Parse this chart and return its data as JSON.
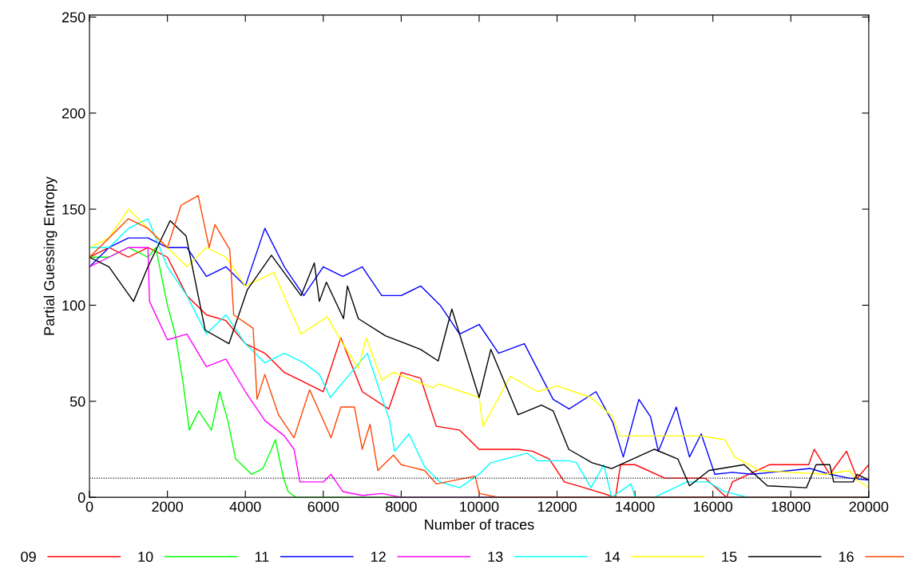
{
  "chart_data": {
    "type": "line",
    "xlabel": "Number of traces",
    "ylabel": "Partial Guessing Entropy",
    "xlim": [
      0,
      20000
    ],
    "ylim": [
      0,
      251
    ],
    "xticks": [
      0,
      2000,
      4000,
      6000,
      8000,
      10000,
      12000,
      14000,
      16000,
      18000,
      20000
    ],
    "yticks": [
      0,
      50,
      100,
      150,
      200,
      250
    ],
    "grid": false,
    "legend": "bottom",
    "marker": "none",
    "line_style": "solid",
    "ref_lines": [
      {
        "axis": "y",
        "value": 10,
        "color": "#000000",
        "line_style": "dotted"
      }
    ],
    "series": [
      {
        "name": "09",
        "color": "#ff0000",
        "x": [
          0,
          500,
          1000,
          1500,
          2000,
          2500,
          3000,
          3500,
          4000,
          4500,
          5000,
          5500,
          6000,
          6450,
          7000,
          7680,
          8000,
          8500,
          8900,
          9500,
          10000,
          10500,
          11000,
          11370,
          11800,
          12190,
          12700,
          13500,
          13630,
          14000,
          14770,
          15000,
          15800,
          16350,
          16500,
          17460,
          18000,
          18460,
          18600,
          19000,
          19430,
          19700,
          20000
        ],
        "values": [
          125,
          130,
          125,
          130,
          125,
          105,
          95,
          92,
          80,
          75,
          65,
          60,
          55,
          83,
          55,
          46,
          65,
          62,
          37,
          35,
          25,
          25,
          25,
          24,
          20,
          8,
          5,
          0,
          17,
          17,
          10,
          10,
          10,
          0,
          8,
          17,
          17,
          17,
          25,
          12,
          24,
          10,
          17
        ]
      },
      {
        "name": "10",
        "color": "#00ff00",
        "x": [
          0,
          500,
          1000,
          1500,
          1700,
          2000,
          2200,
          2400,
          2560,
          2800,
          3130,
          3340,
          3550,
          3750,
          4160,
          4450,
          4670,
          4770,
          4980,
          5100,
          5290,
          20000
        ],
        "values": [
          125,
          125,
          130,
          125,
          130,
          100,
          85,
          60,
          35,
          45,
          35,
          55,
          40,
          20,
          12,
          15,
          25,
          30,
          10,
          3,
          0,
          0
        ]
      },
      {
        "name": "11",
        "color": "#0000ff",
        "x": [
          0,
          500,
          1000,
          1500,
          2000,
          2500,
          3000,
          3500,
          4000,
          4500,
          5000,
          5500,
          6000,
          6500,
          7000,
          7500,
          8000,
          8500,
          9000,
          9500,
          10000,
          10500,
          11160,
          11900,
          12310,
          13000,
          13430,
          13700,
          14100,
          14400,
          14600,
          15060,
          15400,
          15700,
          16050,
          16500,
          17000,
          17500,
          18000,
          18500,
          19000,
          19500,
          20000
        ],
        "values": [
          120,
          130,
          135,
          135,
          130,
          130,
          115,
          120,
          110,
          140,
          120,
          105,
          120,
          115,
          120,
          105,
          105,
          110,
          100,
          85,
          90,
          75,
          80,
          51,
          46,
          55,
          39,
          21,
          51,
          42,
          24,
          47,
          21,
          33,
          12,
          13,
          12,
          13,
          14,
          15,
          12,
          10,
          9
        ]
      },
      {
        "name": "12",
        "color": "#ff00ff",
        "x": [
          0,
          500,
          1000,
          1500,
          1540,
          2000,
          2500,
          3000,
          3500,
          4000,
          4500,
          5000,
          5250,
          5400,
          6000,
          6200,
          6500,
          7000,
          7500,
          8000,
          20000
        ],
        "values": [
          120,
          125,
          130,
          130,
          102,
          82,
          85,
          68,
          72,
          55,
          40,
          32,
          25,
          8,
          8,
          12,
          3,
          1,
          2,
          0,
          0
        ]
      },
      {
        "name": "13",
        "color": "#00ffff",
        "x": [
          0,
          500,
          1000,
          1500,
          2000,
          2500,
          3000,
          3500,
          4000,
          4500,
          5000,
          5500,
          5900,
          6180,
          7130,
          7700,
          7830,
          8200,
          8600,
          9000,
          9500,
          10000,
          10300,
          11230,
          11500,
          12310,
          12500,
          12870,
          13200,
          13400,
          13900,
          14000,
          14500,
          15330,
          15880,
          16290,
          16900,
          20000
        ],
        "values": [
          130,
          130,
          140,
          145,
          120,
          105,
          85,
          95,
          80,
          70,
          75,
          70,
          64,
          52,
          75,
          40,
          24,
          33,
          16,
          8,
          5,
          12,
          18,
          23,
          19,
          19,
          18,
          5,
          17,
          0,
          7,
          0,
          0,
          8,
          8,
          3,
          0,
          0
        ]
      },
      {
        "name": "14",
        "color": "#ffff00",
        "x": [
          0,
          500,
          1000,
          1500,
          2000,
          2500,
          3000,
          3500,
          4000,
          4730,
          5430,
          6100,
          6500,
          6900,
          7100,
          7500,
          7800,
          8800,
          8960,
          10000,
          10100,
          10800,
          11500,
          12000,
          12870,
          13420,
          13600,
          14350,
          15650,
          16300,
          16560,
          17190,
          18900,
          19500,
          19700,
          20000
        ],
        "values": [
          130,
          135,
          150,
          140,
          130,
          120,
          130,
          125,
          110,
          117,
          85,
          94,
          80,
          67,
          83,
          61,
          65,
          57,
          59,
          52,
          37,
          63,
          55,
          58,
          52,
          42,
          32,
          32,
          32,
          30,
          21,
          14,
          12,
          14,
          9,
          5
        ]
      },
      {
        "name": "15",
        "color": "#000000",
        "x": [
          0,
          500,
          1130,
          1500,
          2070,
          2480,
          2970,
          3580,
          4050,
          4670,
          5430,
          5770,
          5900,
          6080,
          6520,
          6620,
          6900,
          7600,
          8500,
          8950,
          9300,
          10000,
          10300,
          11000,
          11600,
          11900,
          12300,
          12900,
          13400,
          14500,
          15100,
          15400,
          15900,
          16800,
          17400,
          18400,
          18650,
          19000,
          19100,
          19600,
          19700,
          20000
        ],
        "values": [
          125,
          120,
          102,
          120,
          144,
          136,
          87,
          80,
          108,
          126,
          105,
          122,
          102,
          112,
          93,
          110,
          93,
          84,
          77,
          71,
          98,
          52,
          77,
          43,
          48,
          45,
          25,
          18,
          15,
          25,
          20,
          6,
          14,
          17,
          6,
          5,
          17,
          17,
          8,
          8,
          12,
          9
        ]
      },
      {
        "name": "16",
        "color": "#ff4500",
        "x": [
          0,
          500,
          1000,
          1500,
          2000,
          2350,
          2790,
          3070,
          3220,
          3600,
          3700,
          4200,
          4300,
          4500,
          4850,
          5250,
          5650,
          6200,
          6450,
          6800,
          7000,
          7200,
          7400,
          7800,
          8000,
          8600,
          8900,
          9900,
          10000,
          10500,
          20000
        ],
        "values": [
          125,
          135,
          145,
          140,
          130,
          152,
          157,
          130,
          142,
          129,
          95,
          88,
          51,
          64,
          43,
          31,
          56,
          31,
          47,
          47,
          25,
          38,
          14,
          22,
          17,
          14,
          7,
          11,
          2,
          0,
          0
        ]
      }
    ]
  }
}
